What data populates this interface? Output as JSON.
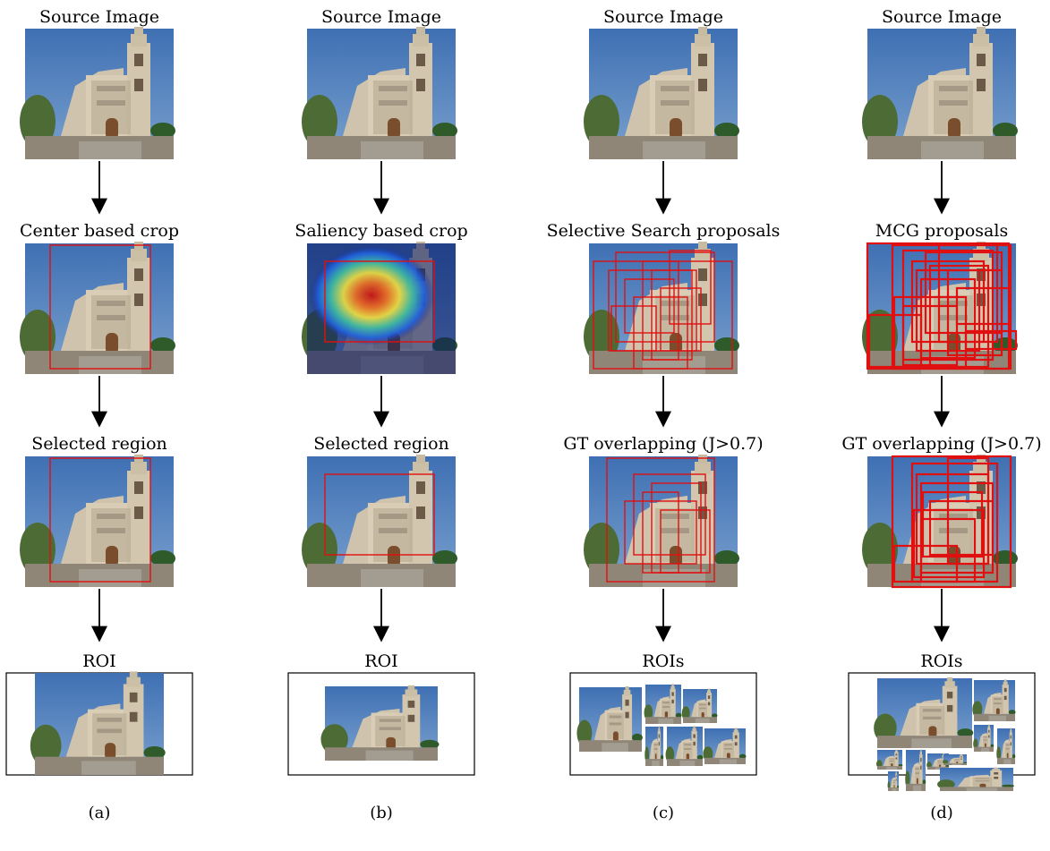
{
  "columns": [
    {
      "id": "a",
      "stage_labels": [
        "Source Image",
        "Center based crop",
        "Selected region",
        "ROI"
      ],
      "caption": "(a)"
    },
    {
      "id": "b",
      "stage_labels": [
        "Source Image",
        "Saliency based crop",
        "Selected region",
        "ROI"
      ],
      "caption": "(b)"
    },
    {
      "id": "c",
      "stage_labels": [
        "Source Image",
        "Selective Search proposals",
        "GT overlapping (J>0.7)",
        "ROIs"
      ],
      "caption": "(c)"
    },
    {
      "id": "d",
      "stage_labels": [
        "Source Image",
        "MCG proposals",
        "GT overlapping (J>0.7)",
        "ROIs"
      ],
      "caption": "(d)"
    }
  ],
  "colors": {
    "sky": "#4f7fbf",
    "facade": "#d9cdb6",
    "stone": "#8f8678",
    "box": "#e01010",
    "arrow": "#000000",
    "frame": "#000000"
  }
}
